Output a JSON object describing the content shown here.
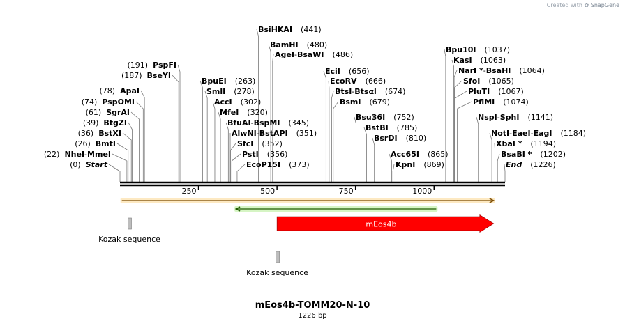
{
  "credit": {
    "prefix": "Created with",
    "brand": "SnapGene"
  },
  "title": "mEos4b-TOMM20-N-10",
  "length_label": "1226 bp",
  "total_bp": 1226,
  "ticks": [
    {
      "bp": 250,
      "label": "250"
    },
    {
      "bp": 500,
      "label": "500"
    },
    {
      "bp": 750,
      "label": "750"
    },
    {
      "bp": 1000,
      "label": "1000"
    }
  ],
  "sites": {
    "left": [
      {
        "id": "nhei-mmei",
        "names": [
          "NheI",
          "MmeI"
        ],
        "pos": "(22)",
        "bp": 22
      },
      {
        "id": "start",
        "names": [
          "Start"
        ],
        "pos": "(0)",
        "bp": 0,
        "italic": true
      },
      {
        "id": "bmti",
        "names": [
          "BmtI"
        ],
        "pos": "(26)",
        "bp": 26
      },
      {
        "id": "bstxi",
        "names": [
          "BstXI"
        ],
        "pos": "(36)",
        "bp": 36
      },
      {
        "id": "btgzi",
        "names": [
          "BtgZI"
        ],
        "pos": "(39)",
        "bp": 39
      },
      {
        "id": "sgrai",
        "names": [
          "SgrAI"
        ],
        "pos": "(61)",
        "bp": 61
      },
      {
        "id": "pspomi",
        "names": [
          "PspOMI"
        ],
        "pos": "(74)",
        "bp": 74
      },
      {
        "id": "apai",
        "names": [
          "ApaI"
        ],
        "pos": "(78)",
        "bp": 78
      },
      {
        "id": "bseyi",
        "names": [
          "BseYI"
        ],
        "pos": "(187)",
        "bp": 187
      },
      {
        "id": "pspfi",
        "names": [
          "PspFI"
        ],
        "pos": "(191)",
        "bp": 191
      }
    ],
    "right": [
      {
        "id": "bsihkai",
        "names": [
          "BsiHKAI"
        ],
        "pos": "(441)",
        "bp": 441
      },
      {
        "id": "bamhi",
        "names": [
          "BamHI"
        ],
        "pos": "(480)",
        "bp": 480
      },
      {
        "id": "agei-bsawi",
        "names": [
          "AgeI",
          "BsaWI"
        ],
        "pos": "(486)",
        "bp": 486
      },
      {
        "id": "bpuei",
        "names": [
          "BpuEI"
        ],
        "pos": "(263)",
        "bp": 263
      },
      {
        "id": "smli",
        "names": [
          "SmlI"
        ],
        "pos": "(278)",
        "bp": 278
      },
      {
        "id": "acci",
        "names": [
          "AccI"
        ],
        "pos": "(302)",
        "bp": 302
      },
      {
        "id": "mfei",
        "names": [
          "MfeI"
        ],
        "pos": "(320)",
        "bp": 320
      },
      {
        "id": "bfuai-bspmi",
        "names": [
          "BfuAI",
          "BspMI"
        ],
        "pos": "(345)",
        "bp": 345
      },
      {
        "id": "alwni-bstapi",
        "names": [
          "AlwNI",
          "BstAPI"
        ],
        "pos": "(351)",
        "bp": 351
      },
      {
        "id": "sfci",
        "names": [
          "SfcI"
        ],
        "pos": "(352)",
        "bp": 352
      },
      {
        "id": "psti",
        "names": [
          "PstI"
        ],
        "pos": "(356)",
        "bp": 356
      },
      {
        "id": "ecop15i",
        "names": [
          "EcoP15I"
        ],
        "pos": "(373)",
        "bp": 373
      },
      {
        "id": "ecii",
        "names": [
          "EciI"
        ],
        "pos": "(656)",
        "bp": 656
      },
      {
        "id": "ecorv",
        "names": [
          "EcoRV"
        ],
        "pos": "(666)",
        "bp": 666
      },
      {
        "id": "btsi-btsai",
        "names": [
          "BtsI",
          "Btsαl"
        ],
        "pos": "(674)",
        "bp": 674
      },
      {
        "id": "bsmi",
        "names": [
          "BsmI"
        ],
        "pos": "(679)",
        "bp": 679
      },
      {
        "id": "bsu36i",
        "names": [
          "Bsu36I"
        ],
        "pos": "(752)",
        "bp": 752
      },
      {
        "id": "bstbi",
        "names": [
          "BstBI"
        ],
        "pos": "(785)",
        "bp": 785
      },
      {
        "id": "bsrdi",
        "names": [
          "BsrDI"
        ],
        "pos": "(810)",
        "bp": 810
      },
      {
        "id": "acc65i",
        "names": [
          "Acc65I"
        ],
        "pos": "(865)",
        "bp": 865
      },
      {
        "id": "kpni",
        "names": [
          "KpnI"
        ],
        "pos": "(869)",
        "bp": 869
      },
      {
        "id": "bpu10i",
        "names": [
          "Bpu10I"
        ],
        "pos": "(1037)",
        "bp": 1037
      },
      {
        "id": "kasi",
        "names": [
          "KasI"
        ],
        "pos": "(1063)",
        "bp": 1063
      },
      {
        "id": "nari-bsahi",
        "names": [
          "NarI *",
          "BsaHI"
        ],
        "pos": "(1064)",
        "bp": 1064
      },
      {
        "id": "sfoi",
        "names": [
          "SfoI"
        ],
        "pos": "(1065)",
        "bp": 1065
      },
      {
        "id": "pluti",
        "names": [
          "PluTI"
        ],
        "pos": "(1067)",
        "bp": 1067
      },
      {
        "id": "pflmi",
        "names": [
          "PflMI"
        ],
        "pos": "(1074)",
        "bp": 1074
      },
      {
        "id": "nspi-sphi",
        "names": [
          "NspI",
          "SphI"
        ],
        "pos": "(1141)",
        "bp": 1141
      },
      {
        "id": "noti-eaei-eagi",
        "names": [
          "NotI",
          "EaeI",
          "EagI"
        ],
        "pos": "(1184)",
        "bp": 1184
      },
      {
        "id": "xbai",
        "names": [
          "XbaI *"
        ],
        "pos": "(1194)",
        "bp": 1194
      },
      {
        "id": "bsabi",
        "names": [
          "BsaBI *"
        ],
        "pos": "(1202)",
        "bp": 1202
      },
      {
        "id": "end",
        "names": [
          "End"
        ],
        "pos": "(1226)",
        "bp": 1226,
        "italic": true
      }
    ]
  },
  "features": [
    {
      "id": "orange-feature",
      "start_bp": 6,
      "end_bp": 1190,
      "color": "#f5a623",
      "fill": "#fde9c2"
    },
    {
      "id": "green-feature",
      "start_bp": 369,
      "end_bp": 1007,
      "color": "#4caf2a",
      "fill": "#d6f5c4"
    },
    {
      "id": "meos4b",
      "label": "mEos4b",
      "start_bp": 500,
      "end_bp": 1190,
      "color": "#ff0000"
    },
    {
      "id": "kozak-1",
      "label": "Kozak sequence",
      "bp": 30,
      "color": "#bdbdbd"
    },
    {
      "id": "kozak-2",
      "label": "Kozak sequence",
      "bp": 501,
      "color": "#bdbdbd"
    }
  ]
}
